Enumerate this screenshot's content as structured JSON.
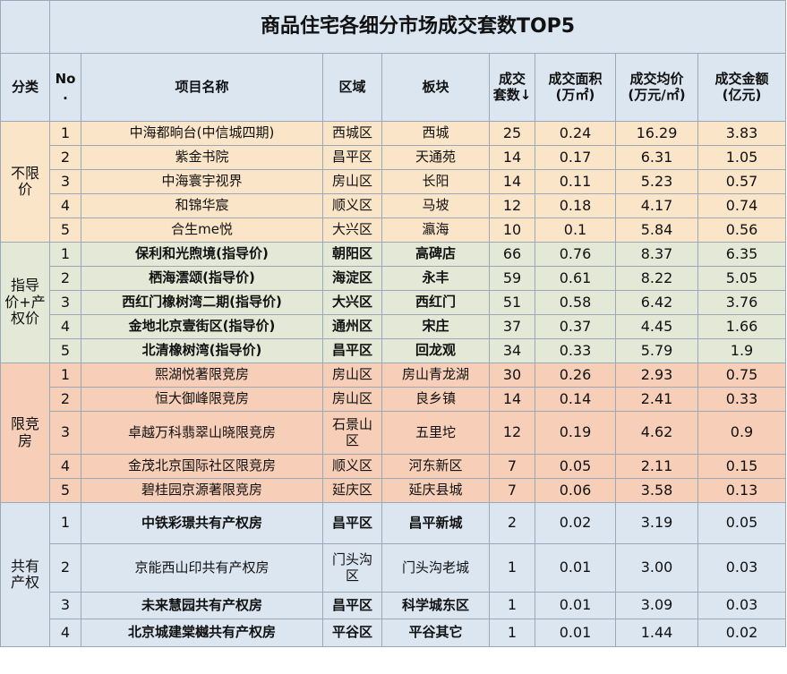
{
  "title": "商品住宅各细分市场成交套数TOP5",
  "headers": {
    "category": "分类",
    "no_line1": "No",
    "no_line2": ".",
    "project": "项目名称",
    "district": "区域",
    "block": "板块",
    "units_line1": "成交",
    "units_line2": "套数↓",
    "area_line1": "成交面积",
    "area_line2": "(万㎡)",
    "price_line1": "成交均价",
    "price_line2": "(万元/㎡)",
    "amount_line1": "成交金额",
    "amount_line2": "(亿元)"
  },
  "groups": [
    {
      "category_line1": "不限",
      "category_line2": "价",
      "rows": [
        {
          "no": "1",
          "project": "中海都晌台(中信城四期)",
          "district": "西城区",
          "block": "西城",
          "units": "25",
          "area": "0.24",
          "price": "16.29",
          "amount": "3.83"
        },
        {
          "no": "2",
          "project": "紫金书院",
          "district": "昌平区",
          "block": "天通苑",
          "units": "14",
          "area": "0.17",
          "price": "6.31",
          "amount": "1.05"
        },
        {
          "no": "3",
          "project": "中海寰宇视界",
          "district": "房山区",
          "block": "长阳",
          "units": "14",
          "area": "0.11",
          "price": "5.23",
          "amount": "0.57"
        },
        {
          "no": "4",
          "project": "和锦华宸",
          "district": "顺义区",
          "block": "马坡",
          "units": "12",
          "area": "0.18",
          "price": "4.17",
          "amount": "0.74"
        },
        {
          "no": "5",
          "project": "合生me悦",
          "district": "大兴区",
          "block": "瀛海",
          "units": "10",
          "area": "0.1",
          "price": "5.84",
          "amount": "0.56"
        }
      ]
    },
    {
      "category_line1": "指导",
      "category_line2": "价+产",
      "category_line3": "权价",
      "rows": [
        {
          "no": "1",
          "project": "保利和光煦境(指导价)",
          "district": "朝阳区",
          "block": "高碑店",
          "units": "66",
          "area": "0.76",
          "price": "8.37",
          "amount": "6.35"
        },
        {
          "no": "2",
          "project": "栖海澐颂(指导价)",
          "district": "海淀区",
          "block": "永丰",
          "units": "59",
          "area": "0.61",
          "price": "8.22",
          "amount": "5.05"
        },
        {
          "no": "3",
          "project": "西红门橡树湾二期(指导价)",
          "district": "大兴区",
          "block": "西红门",
          "units": "51",
          "area": "0.58",
          "price": "6.42",
          "amount": "3.76"
        },
        {
          "no": "4",
          "project": "金地北京壹街区(指导价)",
          "district": "通州区",
          "block": "宋庄",
          "units": "37",
          "area": "0.37",
          "price": "4.45",
          "amount": "1.66"
        },
        {
          "no": "5",
          "project": "北清橡树湾(指导价)",
          "district": "昌平区",
          "block": "回龙观",
          "units": "34",
          "area": "0.33",
          "price": "5.79",
          "amount": "1.9"
        }
      ]
    },
    {
      "category_line1": "限竞",
      "category_line2": "房",
      "rows": [
        {
          "no": "1",
          "project": "熙湖悦著限竞房",
          "district": "房山区",
          "block": "房山青龙湖",
          "units": "30",
          "area": "0.26",
          "price": "2.93",
          "amount": "0.75"
        },
        {
          "no": "2",
          "project": "恒大御峰限竞房",
          "district": "房山区",
          "block": "良乡镇",
          "units": "14",
          "area": "0.14",
          "price": "2.41",
          "amount": "0.33"
        },
        {
          "no": "3",
          "project": "卓越万科翡翠山晓限竞房",
          "district_line1": "石景山",
          "district_line2": "区",
          "block": "五里坨",
          "units": "12",
          "area": "0.19",
          "price": "4.62",
          "amount": "0.9"
        },
        {
          "no": "4",
          "project": "金茂北京国际社区限竞房",
          "district": "顺义区",
          "block": "河东新区",
          "units": "7",
          "area": "0.05",
          "price": "2.11",
          "amount": "0.15"
        },
        {
          "no": "5",
          "project": "碧桂园京源著限竞房",
          "district": "延庆区",
          "block": "延庆县城",
          "units": "7",
          "area": "0.06",
          "price": "3.58",
          "amount": "0.13"
        }
      ]
    },
    {
      "category_line1": "共有",
      "category_line2": "产权",
      "rows": [
        {
          "no": "1",
          "project": "中铁彩璟共有产权房",
          "district": "昌平区",
          "block": "昌平新城",
          "units": "2",
          "area": "0.02",
          "price": "3.19",
          "amount": "0.05"
        },
        {
          "no": "2",
          "project": "京能西山印共有产权房",
          "district_line1": "门头沟",
          "district_line2": "区",
          "block": "门头沟老城",
          "units": "1",
          "area": "0.01",
          "price": "3.00",
          "amount": "0.03"
        },
        {
          "no": "3",
          "project": "未来慧园共有产权房",
          "district": "昌平区",
          "block": "科学城东区",
          "units": "1",
          "area": "0.01",
          "price": "3.09",
          "amount": "0.03"
        },
        {
          "no": "4",
          "project": "北京城建棠樾共有产权房",
          "district": "平谷区",
          "block": "平谷其它",
          "units": "1",
          "area": "0.01",
          "price": "1.44",
          "amount": "0.02"
        }
      ]
    }
  ]
}
